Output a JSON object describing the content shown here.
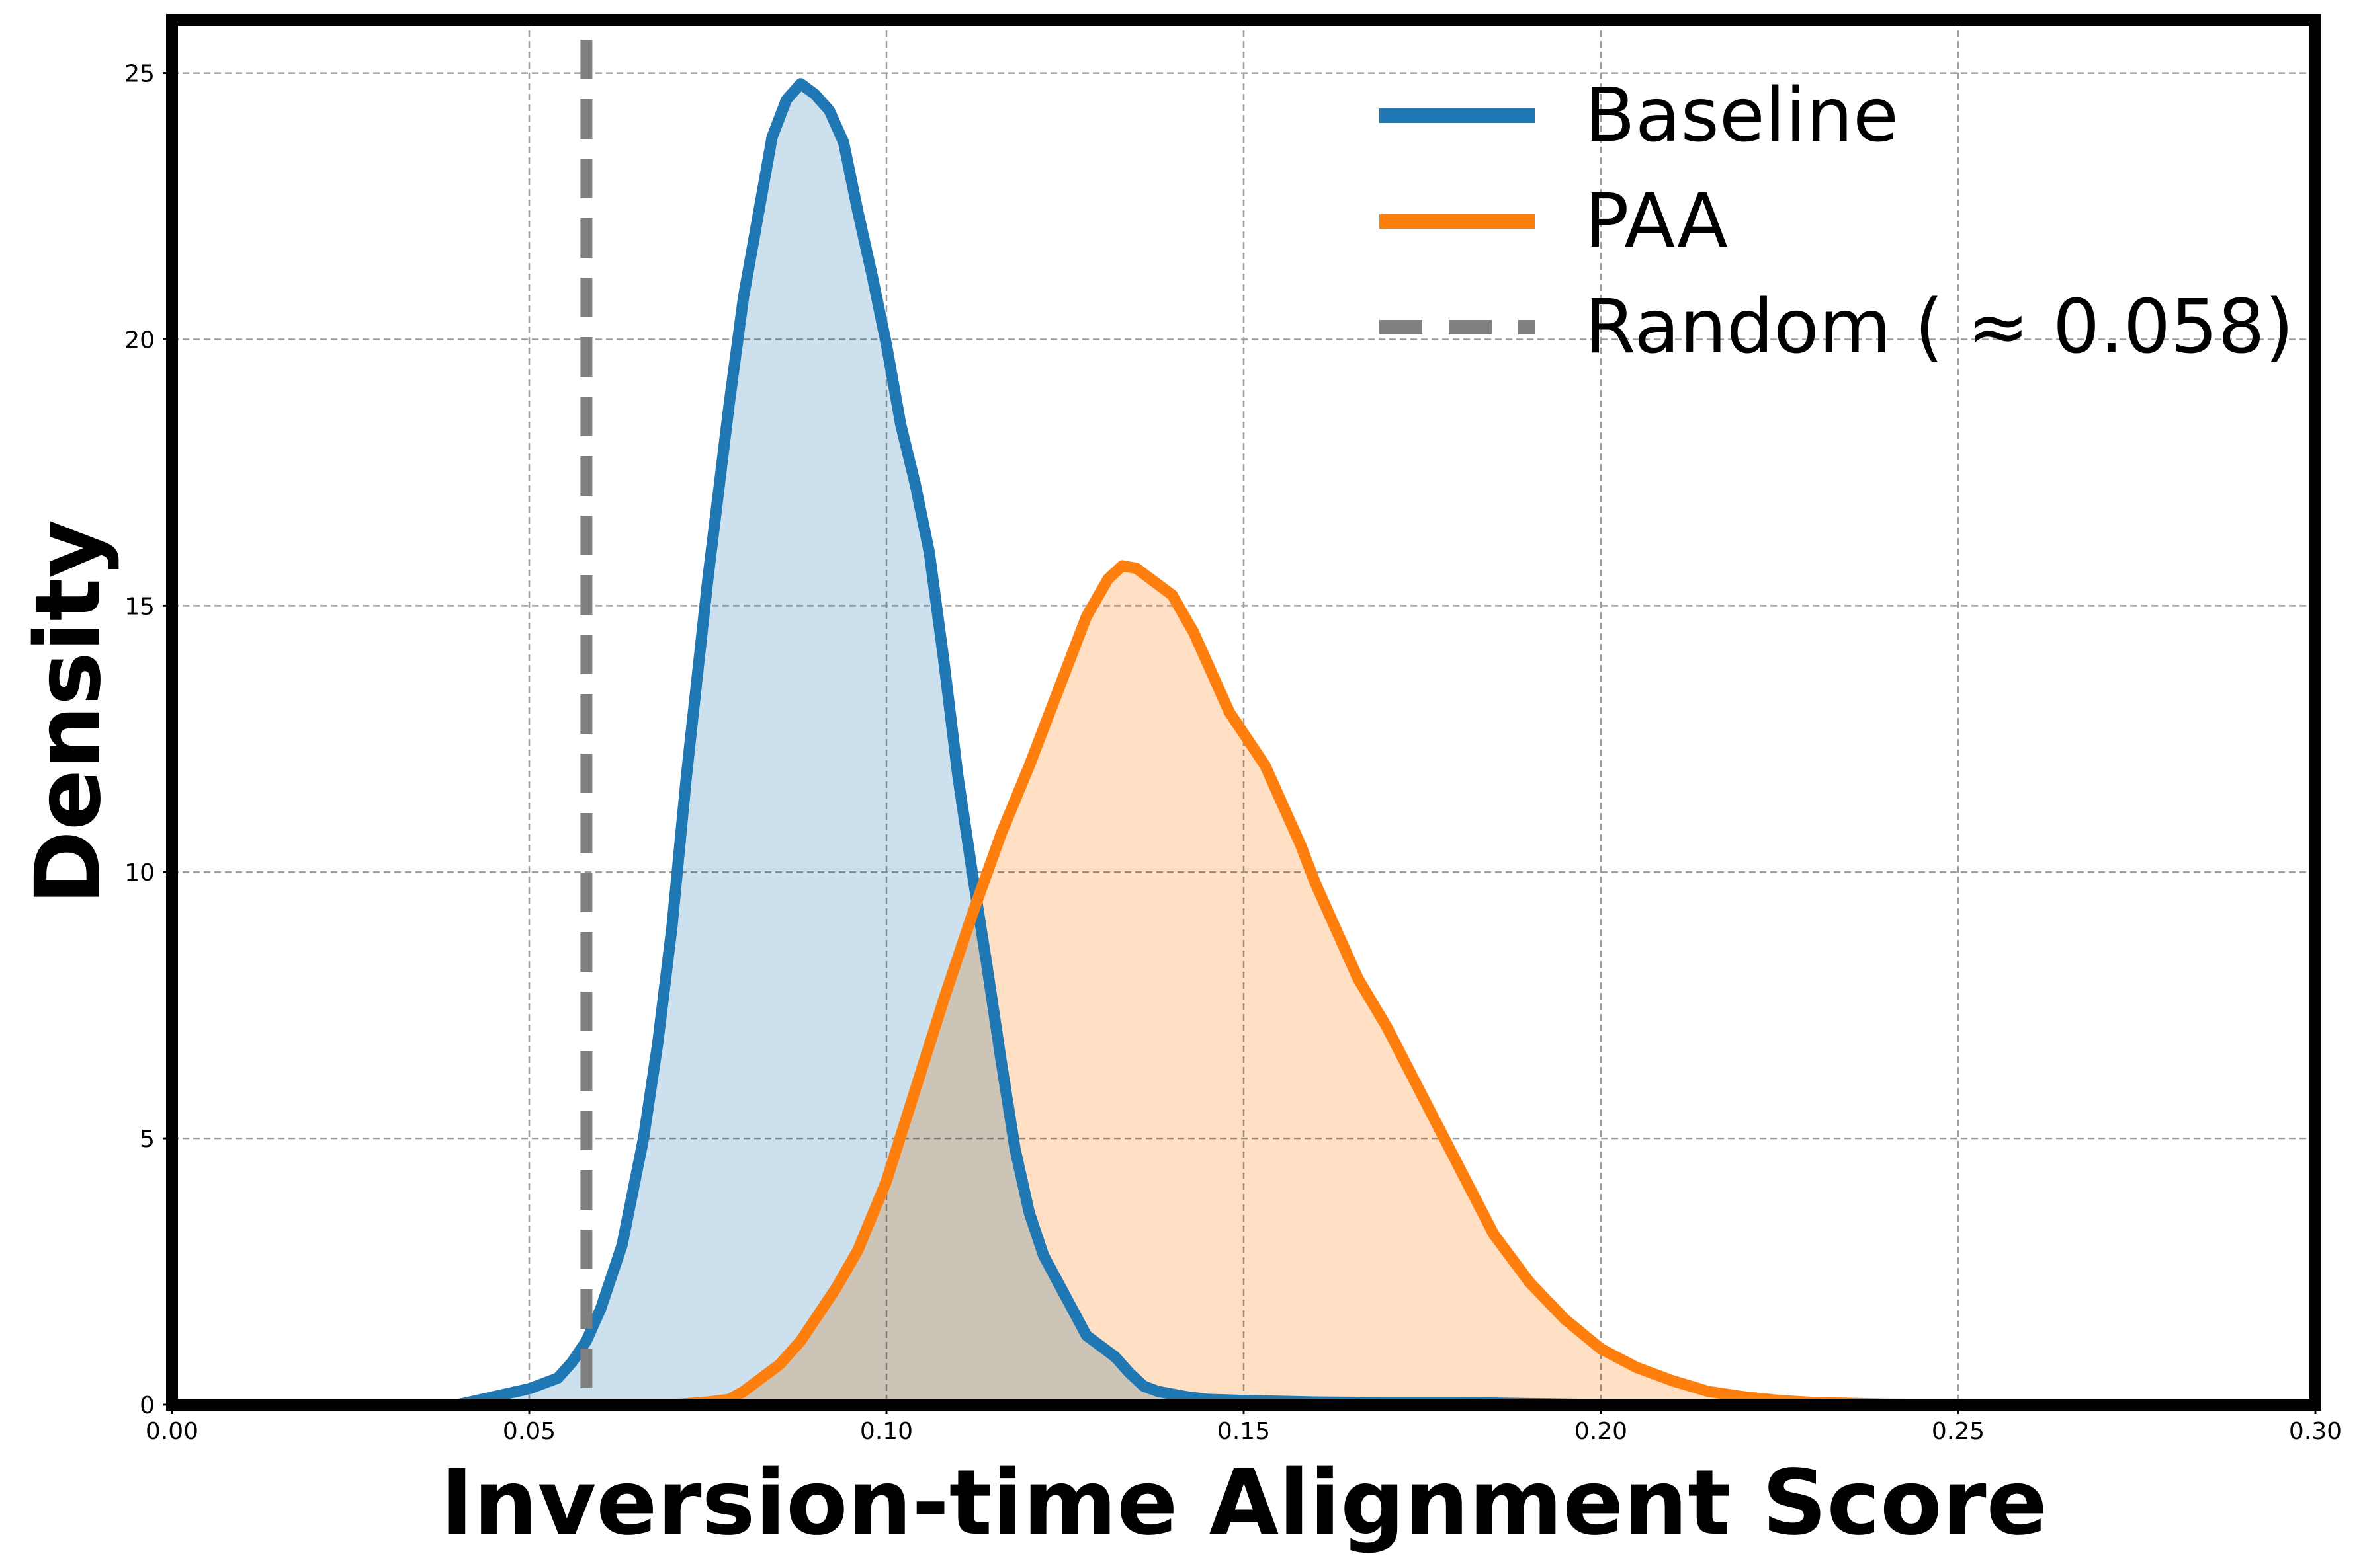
{
  "chart_data": {
    "type": "area",
    "xlabel": "Inversion-time Alignment Score",
    "ylabel": "Density",
    "xlim": [
      0.0,
      0.3
    ],
    "ylim": [
      0,
      26
    ],
    "x_ticks": [
      0.0,
      0.05,
      0.1,
      0.15,
      0.2,
      0.25,
      0.3
    ],
    "x_tick_labels": [
      "0.00",
      "0.05",
      "0.10",
      "0.15",
      "0.20",
      "0.25",
      "0.30"
    ],
    "y_ticks": [
      0,
      5,
      10,
      15,
      20,
      25
    ],
    "y_tick_labels": [
      "0",
      "5",
      "10",
      "15",
      "20",
      "25"
    ],
    "grid": true,
    "legend_position": "top-right",
    "series": [
      {
        "name": "Baseline",
        "color": "#1f77b4",
        "fill_color": "#b9d4e8",
        "x": [
          0.04,
          0.045,
          0.05,
          0.054,
          0.056,
          0.058,
          0.06,
          0.063,
          0.066,
          0.068,
          0.07,
          0.072,
          0.075,
          0.078,
          0.08,
          0.082,
          0.084,
          0.086,
          0.088,
          0.09,
          0.092,
          0.094,
          0.096,
          0.098,
          0.1,
          0.102,
          0.104,
          0.106,
          0.108,
          0.11,
          0.112,
          0.114,
          0.116,
          0.118,
          0.12,
          0.122,
          0.124,
          0.126,
          0.128,
          0.13,
          0.132,
          0.134,
          0.136,
          0.138,
          0.14,
          0.142,
          0.145,
          0.15,
          0.16,
          0.17,
          0.18,
          0.19,
          0.2,
          0.3
        ],
        "y": [
          0.0,
          0.15,
          0.3,
          0.5,
          0.8,
          1.2,
          1.8,
          3.0,
          5.0,
          6.8,
          9.0,
          11.8,
          15.5,
          18.8,
          20.8,
          22.3,
          23.8,
          24.5,
          24.8,
          24.6,
          24.3,
          23.7,
          22.4,
          21.2,
          19.9,
          18.4,
          17.3,
          16.0,
          14.0,
          11.8,
          10.0,
          8.3,
          6.5,
          4.8,
          3.6,
          2.8,
          2.3,
          1.8,
          1.3,
          1.1,
          0.9,
          0.6,
          0.35,
          0.25,
          0.2,
          0.15,
          0.1,
          0.08,
          0.05,
          0.04,
          0.04,
          0.02,
          0.0,
          0.0
        ]
      },
      {
        "name": "PAA",
        "color": "#ff7f0e",
        "fill_color": "#ffd4ad",
        "x": [
          0.07,
          0.075,
          0.078,
          0.08,
          0.082,
          0.085,
          0.088,
          0.09,
          0.093,
          0.096,
          0.1,
          0.104,
          0.108,
          0.112,
          0.116,
          0.12,
          0.124,
          0.128,
          0.131,
          0.133,
          0.135,
          0.137,
          0.14,
          0.143,
          0.145,
          0.148,
          0.15,
          0.153,
          0.155,
          0.158,
          0.16,
          0.163,
          0.166,
          0.17,
          0.175,
          0.18,
          0.185,
          0.19,
          0.195,
          0.2,
          0.205,
          0.21,
          0.215,
          0.22,
          0.225,
          0.23,
          0.24,
          0.25,
          0.3
        ],
        "y": [
          0.0,
          0.05,
          0.1,
          0.25,
          0.45,
          0.75,
          1.2,
          1.6,
          2.2,
          2.9,
          4.2,
          5.9,
          7.6,
          9.2,
          10.7,
          12.0,
          13.4,
          14.8,
          15.5,
          15.75,
          15.7,
          15.5,
          15.2,
          14.5,
          13.9,
          13.0,
          12.6,
          12.0,
          11.4,
          10.5,
          9.8,
          8.9,
          8.0,
          7.1,
          5.8,
          4.5,
          3.2,
          2.3,
          1.6,
          1.05,
          0.7,
          0.45,
          0.25,
          0.15,
          0.08,
          0.04,
          0.01,
          0.0,
          0.0
        ]
      }
    ],
    "reference_line": {
      "name": "Random ( ≈ 0.058)",
      "x": 0.058,
      "color": "#808080",
      "style": "dashed"
    },
    "legend": [
      {
        "label": "Baseline",
        "style": "solid",
        "color": "#1f77b4"
      },
      {
        "label": "PAA",
        "style": "solid",
        "color": "#ff7f0e"
      },
      {
        "label": "Random ( ≈ 0.058)",
        "style": "dashed",
        "color": "#808080"
      }
    ]
  }
}
